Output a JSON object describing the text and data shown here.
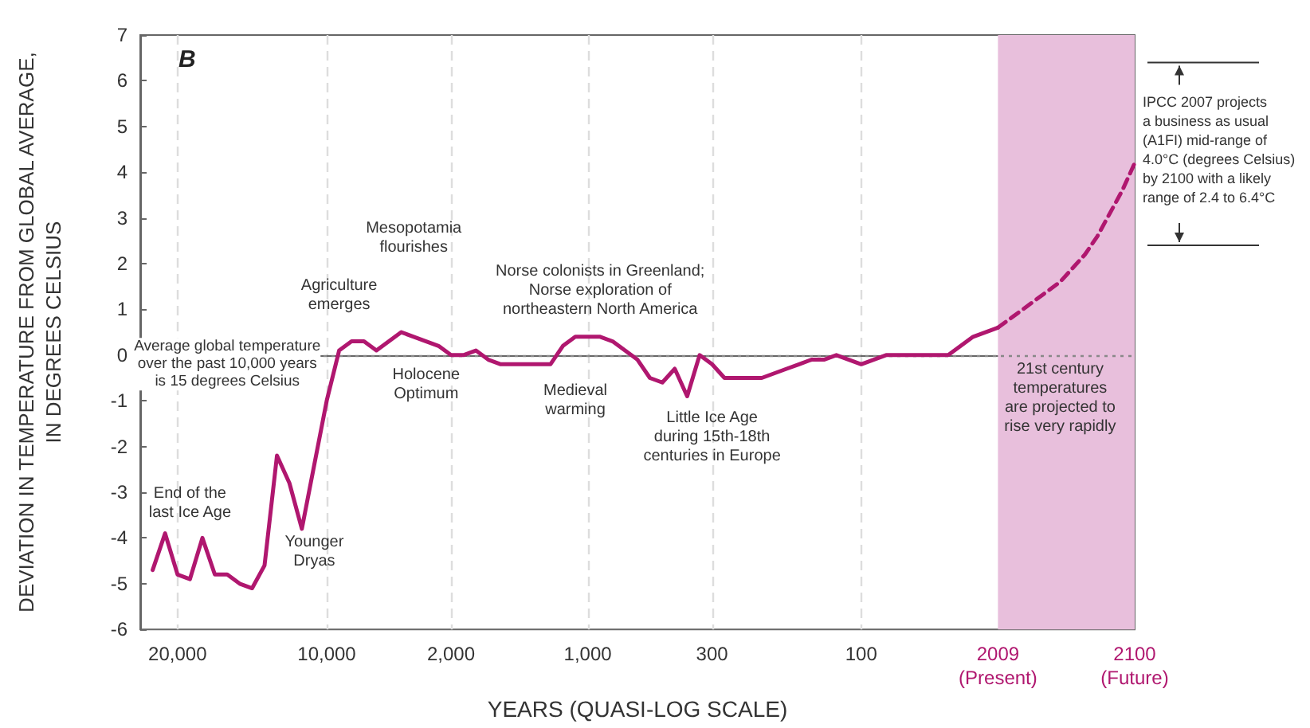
{
  "chart_data": {
    "type": "line",
    "xlabel": "YEARS (QUASI-LOG SCALE)",
    "ylabel": "DEVIATION IN TEMPERATURE FROM GLOBAL AVERAGE,\nIN DEGREES CELSIUS",
    "categories": [
      null,
      null,
      null,
      "20,000",
      null,
      null,
      null,
      null,
      null,
      null,
      null,
      null,
      null,
      null,
      null,
      "10,000",
      null,
      null,
      null,
      null,
      null,
      null,
      null,
      null,
      null,
      "2,000",
      null,
      null,
      null,
      null,
      null,
      null,
      null,
      null,
      null,
      null,
      "1,000",
      null,
      null,
      null,
      null,
      null,
      null,
      null,
      null,
      null,
      "300",
      null,
      null,
      null,
      null,
      null,
      null,
      null,
      null,
      null,
      null,
      null,
      "100",
      null,
      null,
      null,
      null,
      null,
      null,
      null,
      null,
      null,
      null,
      "2009\n(Present)",
      null,
      null,
      null,
      null,
      null,
      null,
      null,
      null,
      null,
      null,
      "2100\n(Future)"
    ],
    "series": [
      {
        "color": "#b0176f",
        "line_style": "solid",
        "values": [
          null,
          -4.7,
          -3.9,
          -4.8,
          -4.9,
          -4.0,
          -4.8,
          -4.8,
          -5.0,
          -5.1,
          -4.6,
          -2.2,
          -2.8,
          -3.8,
          -2.4,
          -1.0,
          0.1,
          0.3,
          0.3,
          0.1,
          0.3,
          0.5,
          0.4,
          0.3,
          0.2,
          0.0,
          0.0,
          0.1,
          -0.1,
          -0.2,
          -0.2,
          -0.2,
          -0.2,
          -0.2,
          0.2,
          0.4,
          0.4,
          0.4,
          0.3,
          0.1,
          -0.1,
          -0.5,
          -0.6,
          -0.3,
          -0.9,
          0.0,
          -0.2,
          -0.5,
          -0.5,
          -0.5,
          -0.5,
          -0.4,
          -0.3,
          -0.2,
          -0.1,
          -0.1,
          0.0,
          -0.1,
          -0.2,
          -0.1,
          0.0,
          0.0,
          0.0,
          0.0,
          0.0,
          0.0,
          0.2,
          0.4,
          0.5,
          0.6,
          null,
          null,
          null,
          null,
          null,
          null,
          null,
          null,
          null,
          null,
          null
        ]
      },
      {
        "color": "#b0176f",
        "line_style": "dashed",
        "values": [
          null,
          null,
          null,
          null,
          null,
          null,
          null,
          null,
          null,
          null,
          null,
          null,
          null,
          null,
          null,
          null,
          null,
          null,
          null,
          null,
          null,
          null,
          null,
          null,
          null,
          null,
          null,
          null,
          null,
          null,
          null,
          null,
          null,
          null,
          null,
          null,
          null,
          null,
          null,
          null,
          null,
          null,
          null,
          null,
          null,
          null,
          null,
          null,
          null,
          null,
          null,
          null,
          null,
          null,
          null,
          null,
          null,
          null,
          null,
          null,
          null,
          null,
          null,
          null,
          null,
          null,
          null,
          null,
          null,
          0.6,
          0.8,
          1.0,
          1.2,
          1.4,
          1.6,
          1.9,
          2.2,
          2.6,
          3.1,
          3.6,
          4.2
        ]
      }
    ],
    "ylim": [
      -6,
      7
    ],
    "yticks": [
      -6,
      -5,
      -4,
      -3,
      -2,
      -1,
      0,
      1,
      2,
      3,
      4,
      5,
      6,
      7
    ],
    "grid": "x",
    "marker": "none",
    "ref_lines": [
      {
        "axis": "y",
        "value": 0,
        "label": "Average global temperature\nover the past 10,000 years\nis 15 degrees Celsius",
        "color": "#888888",
        "line_style": "dotted"
      }
    ],
    "bands": [
      {
        "axis": "x",
        "from": "2009\n(Present)",
        "to": "2100\n(Future)",
        "color": "#e8bfdc"
      }
    ],
    "annotations": [
      "B",
      "End of the\nlast Ice Age",
      "Younger\nDryas",
      "Agriculture\nemerges",
      "Mesopotamia\nflourishes",
      "Holocene\nOptimum",
      "Norse colonists in Greenland;\nNorse exploration of\nnortheastern North America",
      "Medieval\nwarming",
      "Little Ice Age\nduring 15th-18th\ncenturies in Europe",
      "21st century\ntemperatures\nare projected to\nrise very rapidly",
      "IPCC 2007 projects\na business as usual\n(A1FI) mid-range of\n4.0°C (degrees Celsius)\nby 2100 with a likely\nrange of 2.4 to 6.4°C"
    ]
  }
}
